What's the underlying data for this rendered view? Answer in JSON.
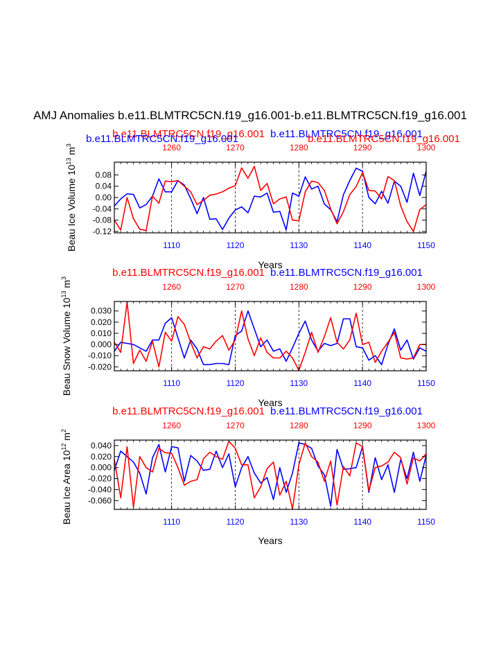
{
  "title": "AMJ Anomalies b.e11.BLMTRC5CN.f19_g16.001-b.e11.BLMTRC5CN.f19_g16.001",
  "colors": {
    "red": "#ff0000",
    "blue": "#0000ff",
    "black": "#000000"
  },
  "chart_data": [
    {
      "type": "line",
      "ylabel": "Beau Ice Volume 10^13 m^3",
      "ylabel_main": "Beau Ice Volume 10",
      "ylabel_exp1": "13",
      "ylabel_mid": " m",
      "ylabel_exp2": "3",
      "xlabel": "Years",
      "ylim": [
        -0.125,
        0.125
      ],
      "yticks": [
        0.08,
        0.04,
        0.0,
        -0.04,
        -0.08,
        -0.12
      ],
      "ytick_labels": [
        "0.08",
        "0.04",
        "0.00",
        "-0.04",
        "-0.08",
        "-0.12"
      ],
      "top_labels": {
        "left": "b.e11.BLMTRC5CN.f19_g16.001",
        "right": "b.e11.BLMTRC5CN.f19_g16.001",
        "extra_left": "b.e11.BLMTRC5CN.f19_g16.001",
        "extra_right": "b.e11.BLMTRC5CN.f19_g16.001"
      },
      "bottom_axis": {
        "range": [
          1101,
          1150
        ],
        "ticks": [
          1110,
          1120,
          1130,
          1140,
          1150
        ],
        "labels": [
          "1110",
          "1120",
          "1130",
          "1140",
          "1150"
        ]
      },
      "top_axis": {
        "range": [
          1251,
          1300
        ],
        "ticks": [
          1260,
          1270,
          1280,
          1290,
          1300
        ],
        "labels": [
          "1260",
          "1270",
          "1280",
          "1290",
          "1300"
        ]
      },
      "series": [
        {
          "name": "b.e11.BLMTRC5CN.f19_g16.001 (1101-1150)",
          "color": "blue",
          "x_start": 1101,
          "values": [
            -0.03,
            -0.005,
            0.013,
            0.011,
            -0.037,
            -0.025,
            0.005,
            0.066,
            0.02,
            0.02,
            0.06,
            0.044,
            -0.004,
            -0.057,
            0.0,
            -0.077,
            -0.075,
            -0.113,
            -0.073,
            -0.044,
            -0.033,
            -0.054,
            0.005,
            0.002,
            0.016,
            -0.052,
            -0.049,
            -0.115,
            0.016,
            0.005,
            0.073,
            0.03,
            0.04,
            -0.023,
            -0.043,
            -0.085,
            0.01,
            0.06,
            0.104,
            0.093,
            0.0,
            -0.022,
            0.022,
            -0.02,
            0.058,
            0.04,
            -0.017,
            0.086,
            0.007,
            0.093
          ]
        },
        {
          "name": "b.e11.BLMTRC5CN.f19_g16.001 (1251-1300)",
          "color": "red",
          "x_start": 1251,
          "values": [
            -0.08,
            -0.115,
            0.0,
            -0.075,
            -0.112,
            -0.117,
            0.005,
            -0.02,
            0.058,
            0.056,
            0.06,
            0.04,
            0.02,
            -0.025,
            -0.01,
            0.008,
            0.012,
            0.02,
            0.033,
            0.042,
            0.105,
            0.068,
            0.11,
            0.025,
            0.05,
            -0.022,
            -0.005,
            0.002,
            -0.08,
            -0.082,
            0.02,
            0.058,
            0.053,
            0.025,
            -0.04,
            -0.093,
            -0.05,
            0.01,
            0.039,
            0.088,
            0.025,
            0.023,
            -0.005,
            0.074,
            0.06,
            -0.03,
            -0.085,
            -0.12,
            -0.043,
            -0.025
          ]
        }
      ]
    },
    {
      "type": "line",
      "ylabel": "Beau Snow Volume 10^13 m^3",
      "ylabel_main": "Beau Snow Volume 10",
      "ylabel_exp1": "13",
      "ylabel_mid": " m",
      "ylabel_exp2": "3",
      "xlabel": "Years",
      "ylim": [
        -0.0235,
        0.0385
      ],
      "yticks": [
        0.03,
        0.02,
        0.01,
        0.0,
        -0.01,
        -0.02
      ],
      "ytick_labels": [
        "0.030",
        "0.020",
        "0.010",
        "0.000",
        "-0.010",
        "-0.020"
      ],
      "top_labels": {
        "left": "b.e11.BLMTRC5CN.f19_g16.001",
        "right": "b.e11.BLMTRC5CN.f19_g16.001"
      },
      "bottom_axis": {
        "range": [
          1101,
          1150
        ],
        "ticks": [
          1110,
          1120,
          1130,
          1140,
          1150
        ],
        "labels": [
          "1110",
          "1120",
          "1130",
          "1140",
          "1150"
        ]
      },
      "top_axis": {
        "range": [
          1251,
          1300
        ],
        "ticks": [
          1260,
          1270,
          1280,
          1290,
          1300
        ],
        "labels": [
          "1260",
          "1270",
          "1280",
          "1290",
          "1300"
        ]
      },
      "series": [
        {
          "name": "b.e11.BLMTRC5CN.f19_g16.001 (1101-1150)",
          "color": "blue",
          "x_start": 1101,
          "values": [
            -0.006,
            0.002,
            0.001,
            0.0,
            -0.003,
            -0.006,
            0.004,
            0.004,
            0.019,
            0.024,
            0.006,
            -0.012,
            0.004,
            -0.004,
            -0.018,
            -0.018,
            -0.017,
            -0.017,
            -0.018,
            0.008,
            0.012,
            0.03,
            0.014,
            -0.002,
            0.004,
            -0.006,
            -0.004,
            -0.015,
            -0.003,
            0.01,
            0.021,
            0.004,
            -0.006,
            0.001,
            -0.001,
            0.001,
            0.023,
            0.023,
            -0.002,
            -0.003,
            -0.014,
            -0.01,
            -0.018,
            0.0,
            0.014,
            -0.005,
            0.004,
            -0.013,
            -0.003,
            -0.006
          ]
        },
        {
          "name": "b.e11.BLMTRC5CN.f19_g16.001 (1251-1300)",
          "color": "red",
          "x_start": 1251,
          "values": [
            0.002,
            -0.007,
            0.038,
            -0.017,
            -0.005,
            -0.015,
            0.003,
            -0.02,
            0.011,
            0.003,
            0.025,
            0.018,
            0.002,
            -0.012,
            -0.002,
            -0.004,
            0.003,
            0.008,
            -0.005,
            0.004,
            0.03,
            0.005,
            -0.01,
            0.006,
            -0.007,
            -0.012,
            -0.012,
            -0.006,
            -0.012,
            -0.023,
            -0.007,
            0.011,
            -0.007,
            0.007,
            0.024,
            0.002,
            -0.004,
            0.004,
            0.028,
            0.0,
            0.002,
            -0.016,
            -0.006,
            0.002,
            0.011,
            -0.012,
            -0.013,
            -0.012,
            0.0,
            0.0
          ]
        }
      ]
    },
    {
      "type": "line",
      "ylabel": "Beau Ice Area 10^12 m^2",
      "ylabel_main": "Beau Ice Area 10",
      "ylabel_exp1": "12",
      "ylabel_mid": " m",
      "ylabel_exp2": "2",
      "xlabel": "Years",
      "ylim": [
        -0.076,
        0.05
      ],
      "yticks": [
        0.04,
        0.02,
        0.0,
        -0.02,
        -0.04,
        -0.06
      ],
      "ytick_labels": [
        "0.040",
        "0.020",
        "0.000",
        "-0.020",
        "-0.040",
        "-0.060"
      ],
      "top_labels": {
        "left": "b.e11.BLMTRC5CN.f19_g16.001",
        "right": "b.e11.BLMTRC5CN.f19_g16.001"
      },
      "bottom_axis": {
        "range": [
          1101,
          1150
        ],
        "ticks": [
          1110,
          1120,
          1130,
          1140,
          1150
        ],
        "labels": [
          "1110",
          "1120",
          "1130",
          "1140",
          "1150"
        ]
      },
      "top_axis": {
        "range": [
          1251,
          1300
        ],
        "ticks": [
          1260,
          1270,
          1280,
          1290,
          1300
        ],
        "labels": [
          "1260",
          "1270",
          "1280",
          "1290",
          "1300"
        ]
      },
      "series": [
        {
          "name": "b.e11.BLMTRC5CN.f19_g16.001 (1101-1150)",
          "color": "blue",
          "x_start": 1101,
          "values": [
            -0.005,
            0.03,
            0.02,
            0.01,
            -0.01,
            -0.048,
            0.018,
            0.042,
            -0.008,
            0.038,
            0.036,
            -0.025,
            0.022,
            0.012,
            -0.005,
            -0.003,
            0.03,
            0.0,
            0.025,
            -0.035,
            0.0,
            0.02,
            -0.01,
            -0.028,
            -0.018,
            -0.058,
            0.0,
            -0.045,
            -0.01,
            0.045,
            0.042,
            0.035,
            0.003,
            -0.013,
            -0.07,
            0.033,
            -0.003,
            -0.002,
            0.0,
            0.038,
            -0.045,
            0.018,
            -0.022,
            0.005,
            -0.045,
            0.015,
            -0.02,
            0.028,
            -0.025,
            0.022
          ]
        },
        {
          "name": "b.e11.BLMTRC5CN.f19_g16.001 (1251-1300)",
          "color": "red",
          "x_start": 1251,
          "values": [
            0.015,
            -0.055,
            0.038,
            -0.072,
            0.02,
            0.0,
            -0.008,
            0.035,
            0.027,
            0.026,
            0.0,
            -0.032,
            -0.025,
            -0.022,
            0.016,
            0.028,
            0.02,
            0.015,
            0.048,
            0.035,
            0.005,
            0.005,
            -0.055,
            -0.035,
            -0.002,
            0.01,
            -0.05,
            -0.025,
            -0.075,
            0.005,
            0.045,
            0.02,
            0.01,
            -0.025,
            0.012,
            -0.068,
            0.002,
            -0.015,
            0.045,
            0.038,
            -0.042,
            0.0,
            0.003,
            0.01,
            0.028,
            0.018,
            -0.03,
            0.018,
            0.012,
            0.025
          ]
        }
      ]
    }
  ]
}
